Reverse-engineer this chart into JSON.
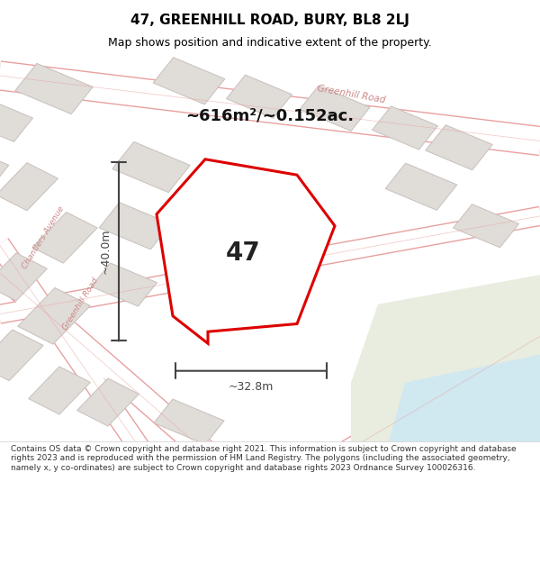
{
  "title": "47, GREENHILL ROAD, BURY, BL8 2LJ",
  "subtitle": "Map shows position and indicative extent of the property.",
  "footer": "Contains OS data © Crown copyright and database right 2021. This information is subject to Crown copyright and database rights 2023 and is reproduced with the permission of HM Land Registry. The polygons (including the associated geometry, namely x, y co-ordinates) are subject to Crown copyright and database rights 2023 Ordnance Survey 100026316.",
  "property_number": "47",
  "area_label": "~616m²/~0.152ac.",
  "dim_height": "~40.0m",
  "dim_width": "~32.8m",
  "bg_color": "#f0eeea",
  "map_bg": "#f0eeea",
  "road_color": "#ffffff",
  "road_stroke": "#e8a0a0",
  "block_color": "#e0dcd8",
  "block_stroke": "#c8c0bc",
  "green_area": "#e8ede0",
  "water_color": "#d0e8f0",
  "property_fill": "#ffffff",
  "property_stroke": "#dd0000",
  "dim_color": "#444444",
  "title_color": "#000000",
  "footer_color": "#333333",
  "road_label_color": "#cc8888",
  "street_labels": [
    "Greenhill Road",
    "Chantlers Avenue",
    "Greenhill Road"
  ],
  "map_xlim": [
    0,
    10
  ],
  "map_ylim": [
    0,
    10
  ]
}
